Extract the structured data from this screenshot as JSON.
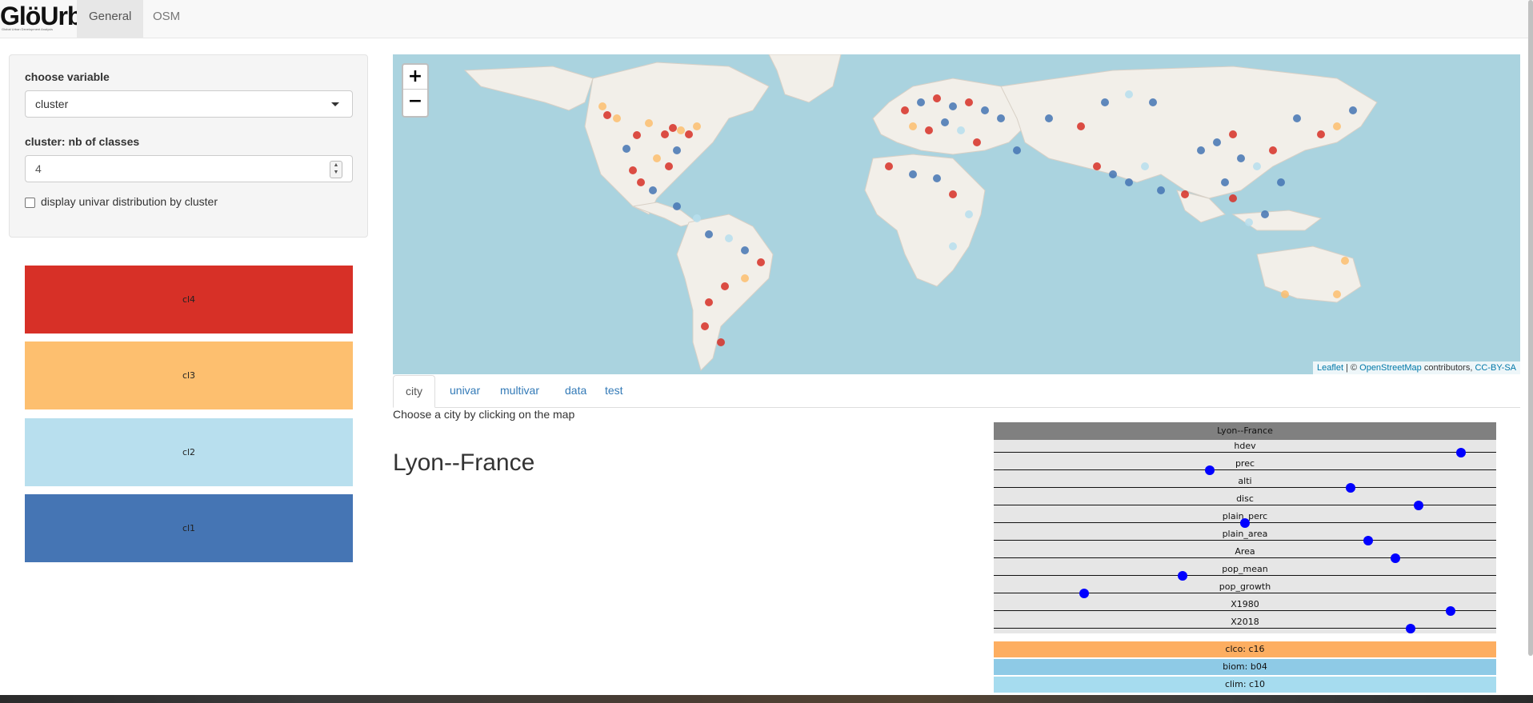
{
  "app": {
    "logo_text": "GlöUrb",
    "logo_subtitle": "Global Urban Development Analysis"
  },
  "navbar": {
    "tabs": [
      {
        "label": "General",
        "active": true
      },
      {
        "label": "OSM",
        "active": false
      }
    ]
  },
  "sidebar": {
    "variable_label": "choose variable",
    "variable_value": "cluster",
    "classes_label": "cluster: nb of classes",
    "classes_value": "4",
    "checkbox_label": "display univar distribution by cluster",
    "checkbox_checked": false,
    "clusters": [
      {
        "label": "cl4",
        "color": "#d73027"
      },
      {
        "label": "cl3",
        "color": "#fdbf6f"
      },
      {
        "label": "cl2",
        "color": "#b8dfee"
      },
      {
        "label": "cl1",
        "color": "#4575b4"
      }
    ]
  },
  "map": {
    "zoom_in": "+",
    "zoom_out": "−",
    "attribution": {
      "leaflet": "Leaflet",
      "sep": " | © ",
      "osm": "OpenStreetMap",
      "contrib": " contributors, ",
      "license": "CC-BY-SA"
    },
    "water_color": "#aad3df",
    "land_color": "#f2efe9"
  },
  "main": {
    "tabs": [
      {
        "label": "city",
        "active": true
      },
      {
        "label": "univar",
        "active": false
      },
      {
        "label": "multivar",
        "active": false
      },
      {
        "label": "data",
        "active": false
      },
      {
        "label": "test",
        "active": false
      }
    ],
    "hint": "Choose a city by clicking on the map",
    "city_title": "Lyon--France"
  },
  "profile": {
    "title": "Lyon--France",
    "rows": [
      {
        "label": "hdev",
        "value": 0.93
      },
      {
        "label": "prec",
        "value": 0.43
      },
      {
        "label": "alti",
        "value": 0.71
      },
      {
        "label": "disc",
        "value": 0.845
      },
      {
        "label": "plain_perc",
        "value": 0.5
      },
      {
        "label": "plain_area",
        "value": 0.745
      },
      {
        "label": "Area",
        "value": 0.8
      },
      {
        "label": "pop_mean",
        "value": 0.375
      },
      {
        "label": "pop_growth",
        "value": 0.18
      },
      {
        "label": "X1980",
        "value": 0.91
      },
      {
        "label": "X2018",
        "value": 0.83
      }
    ],
    "categories": [
      {
        "label": "clco: c16",
        "color": "#fdae61"
      },
      {
        "label": "biom: b04",
        "color": "#8ecae6"
      },
      {
        "label": "clim: c10",
        "color": "#a6dcef"
      }
    ]
  }
}
